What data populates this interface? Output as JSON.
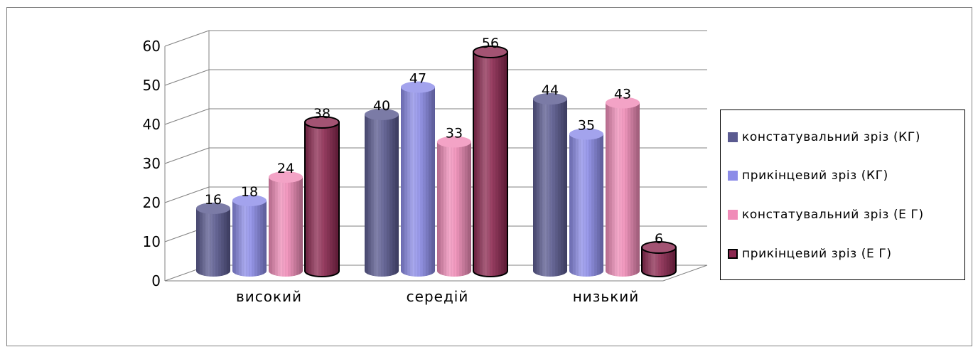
{
  "chart_data": {
    "type": "bar",
    "style": "3d-cylinder",
    "categories": [
      "високий",
      "середій",
      "низький"
    ],
    "series": [
      {
        "name": "констатувальний зріз (КГ)",
        "color": "#5a5a90",
        "values": [
          16,
          40,
          44
        ]
      },
      {
        "name": "прикінцевий зріз (КГ)",
        "color": "#8c8ce8",
        "values": [
          18,
          47,
          35
        ]
      },
      {
        "name": "констатувальний зріз (Е Г)",
        "color": "#f08cb8",
        "values": [
          24,
          33,
          43
        ]
      },
      {
        "name": "прикінцевий зріз (Е Г)",
        "color": "#8c2850",
        "values": [
          38,
          56,
          6
        ]
      }
    ],
    "y_ticks": [
      0,
      10,
      20,
      30,
      40,
      50,
      60
    ],
    "ylim": [
      0,
      60
    ],
    "grid": true,
    "legend_position": "right"
  }
}
